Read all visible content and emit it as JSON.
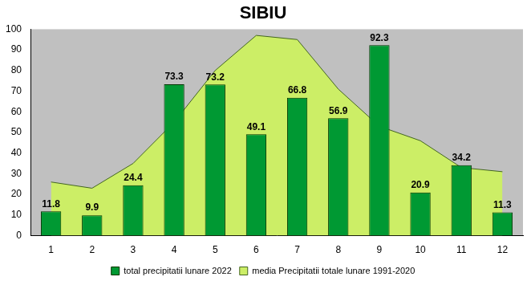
{
  "chart_data": {
    "type": "bar",
    "title": "SIBIU",
    "categories": [
      "1",
      "2",
      "3",
      "4",
      "5",
      "6",
      "7",
      "8",
      "9",
      "10",
      "11",
      "12"
    ],
    "series": [
      {
        "name": "media Precipitatii totale lunare 1991-2020",
        "type": "area",
        "color": "#ccee66",
        "values": [
          26,
          23,
          35,
          55,
          80,
          97,
          95,
          71,
          53,
          46,
          33,
          31
        ]
      },
      {
        "name": "total precipitatii lunare 2022",
        "type": "bar",
        "color": "#009933",
        "data_labels": true,
        "values": [
          11.8,
          9.9,
          24.4,
          73.3,
          73.2,
          49.1,
          66.8,
          56.9,
          92.3,
          20.9,
          34.2,
          11.3
        ]
      }
    ],
    "ylim": [
      0,
      100
    ],
    "yticks": [
      0,
      10,
      20,
      30,
      40,
      50,
      60,
      70,
      80,
      90,
      100
    ],
    "grid": false,
    "legend": "bottom"
  }
}
